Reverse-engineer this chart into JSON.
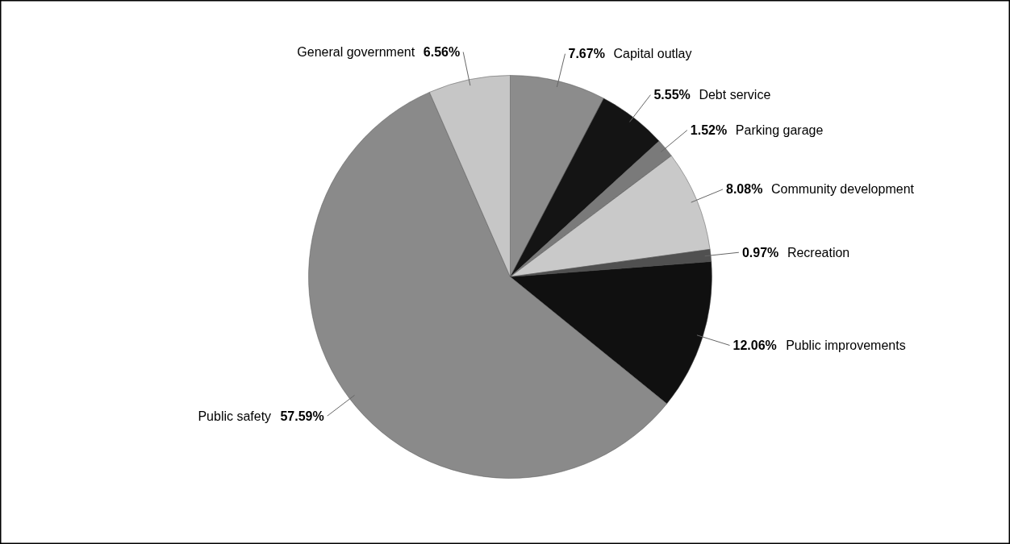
{
  "chart_data": {
    "type": "pie",
    "categories": [
      "Capital outlay",
      "Debt service",
      "Parking garage",
      "Community development",
      "Recreation",
      "Public improvements",
      "Public safety",
      "General government"
    ],
    "values": [
      7.67,
      5.55,
      1.52,
      8.08,
      0.97,
      12.06,
      57.59,
      6.56
    ],
    "colors": [
      "#8c8c8c",
      "#141414",
      "#7a7a7a",
      "#c9c9c9",
      "#505050",
      "#101010",
      "#8a8a8a",
      "#c6c6c6"
    ],
    "value_labels": [
      "7.67%",
      "5.55%",
      "1.52%",
      "8.08%",
      "0.97%",
      "12.06%",
      "57.59%",
      "6.56%"
    ]
  }
}
